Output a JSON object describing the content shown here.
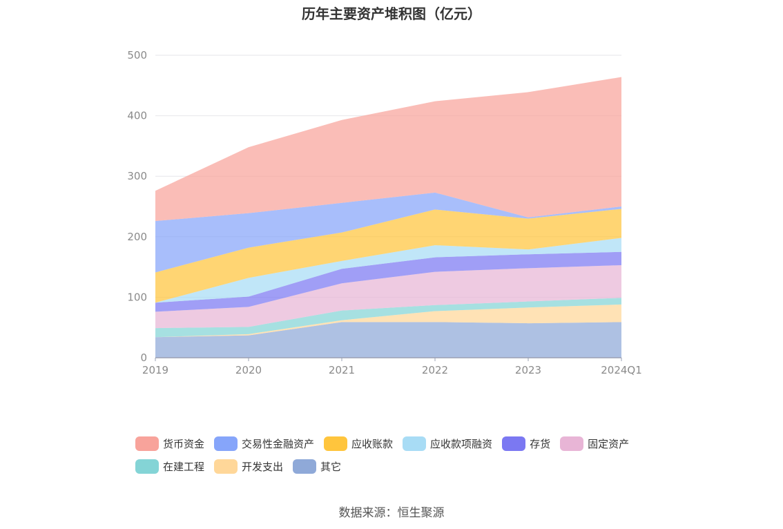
{
  "chart_data": {
    "type": "area",
    "stacked": true,
    "title": "历年主要资产堆积图（亿元）",
    "source": "数据来源：恒生聚源",
    "x": [
      "2019",
      "2020",
      "2021",
      "2022",
      "2023",
      "2024Q1"
    ],
    "ylim": [
      0,
      500
    ],
    "yticks": [
      "0",
      "100",
      "200",
      "300",
      "400",
      "500"
    ],
    "legend_position": "bottom",
    "grid": true,
    "series": [
      {
        "name": "其它",
        "color": "#8fa9d8",
        "values": [
          34,
          37,
          59,
          59,
          57,
          59
        ]
      },
      {
        "name": "开发支出",
        "color": "#ffd799",
        "values": [
          0,
          2,
          3,
          18,
          26,
          29
        ]
      },
      {
        "name": "在建工程",
        "color": "#84d4d6",
        "values": [
          15,
          12,
          16,
          10,
          10,
          11
        ]
      },
      {
        "name": "固定资产",
        "color": "#e8b5d6",
        "values": [
          27,
          33,
          45,
          55,
          55,
          54
        ]
      },
      {
        "name": "存货",
        "color": "#7b78f2",
        "values": [
          15,
          17,
          24,
          24,
          23,
          22
        ]
      },
      {
        "name": "应收款项融资",
        "color": "#a8dcf5",
        "values": [
          0,
          31,
          13,
          20,
          8,
          23
        ]
      },
      {
        "name": "应收账款",
        "color": "#ffc53d",
        "values": [
          50,
          50,
          47,
          59,
          51,
          48
        ]
      },
      {
        "name": "交易性金融资产",
        "color": "#86a5fa",
        "values": [
          85,
          57,
          49,
          28,
          2,
          4
        ]
      },
      {
        "name": "货币资金",
        "color": "#f8a39b",
        "values": [
          50,
          109,
          137,
          151,
          207,
          214
        ]
      }
    ]
  }
}
